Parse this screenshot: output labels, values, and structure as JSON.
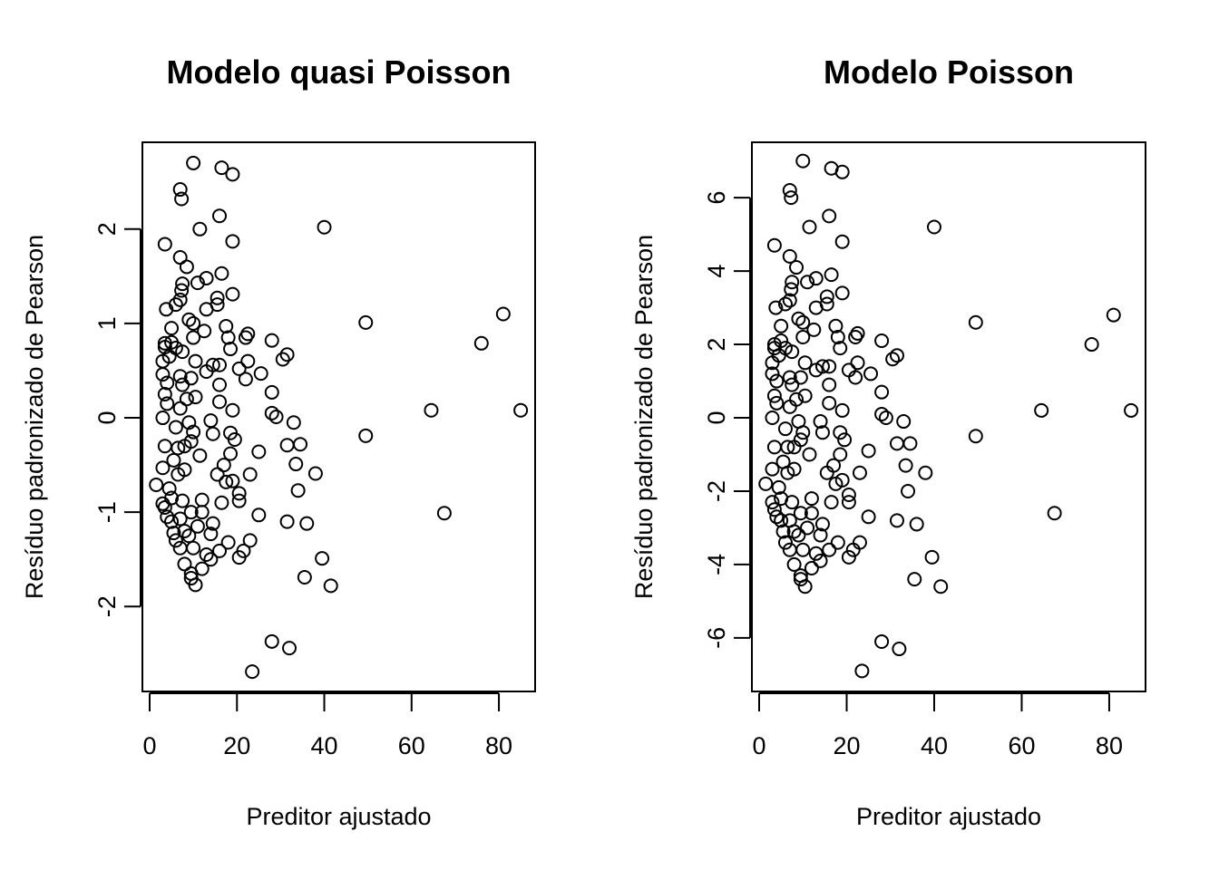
{
  "chart_data": [
    {
      "type": "scatter",
      "title": "Modelo quasi Poisson",
      "xlabel": "Preditor ajustado",
      "ylabel": "Resíduo padronizado de Pearson",
      "xlim": [
        -1.66,
        88.3
      ],
      "ylim": [
        -2.9,
        2.92
      ],
      "xticks": [
        0,
        20,
        40,
        60,
        80
      ],
      "yticks": [
        -2,
        -1,
        0,
        1,
        2
      ],
      "x": [
        10,
        16.5,
        19,
        7,
        7.3,
        16,
        11.5,
        40,
        19,
        3.5,
        7,
        8.5,
        16.5,
        13,
        11,
        7.5,
        7.3,
        19,
        7,
        15.5,
        13,
        3.8,
        15.5,
        6,
        81,
        49.5,
        9,
        5,
        10,
        17.5,
        12.5,
        22.5,
        10,
        18,
        22,
        28,
        76,
        3.5,
        5,
        6,
        7.5,
        18.5,
        3.5,
        4.5,
        31.5,
        30.5,
        3,
        10.5,
        22.5,
        16,
        14.5,
        20.5,
        13,
        25.5,
        3,
        7,
        9.5,
        22,
        4,
        7.5,
        16,
        28,
        3.5,
        10.5,
        8.5,
        4,
        16,
        7,
        19,
        64.5,
        85,
        28,
        29,
        3,
        14,
        9,
        33,
        6,
        10,
        18.5,
        14.5,
        49.5,
        19.5,
        9.5,
        34.5,
        31.5,
        8,
        3.5,
        6.5,
        25,
        18.5,
        11.5,
        5.5,
        33.5,
        17,
        3,
        8,
        15.5,
        23,
        38,
        6.5,
        19,
        17.5,
        1.5,
        4.5,
        34,
        20.5,
        5,
        7.5,
        20.5,
        12,
        16.5,
        3,
        3.5,
        9.5,
        12,
        25,
        67.5,
        4,
        7,
        5,
        31.5,
        36,
        14.5,
        11,
        8,
        5.5,
        9,
        14,
        6,
        18,
        23,
        10,
        7,
        21.5,
        16,
        13,
        20.5,
        14,
        39.5,
        8,
        12,
        9.5,
        35.5,
        9.5,
        10.5,
        41.5,
        28,
        32,
        23.5
      ],
      "y": [
        2.7,
        2.65,
        2.58,
        2.42,
        2.32,
        2.14,
        2.0,
        2.02,
        1.87,
        1.84,
        1.7,
        1.6,
        1.53,
        1.48,
        1.43,
        1.42,
        1.35,
        1.31,
        1.25,
        1.27,
        1.15,
        1.15,
        1.2,
        1.2,
        1.1,
        1.01,
        1.04,
        0.95,
        1.0,
        0.97,
        0.92,
        0.89,
        0.85,
        0.85,
        0.85,
        0.82,
        0.79,
        0.79,
        0.8,
        0.74,
        0.7,
        0.73,
        0.75,
        0.65,
        0.67,
        0.62,
        0.6,
        0.6,
        0.6,
        0.56,
        0.56,
        0.52,
        0.49,
        0.47,
        0.46,
        0.44,
        0.42,
        0.41,
        0.37,
        0.35,
        0.35,
        0.27,
        0.25,
        0.22,
        0.2,
        0.15,
        0.17,
        0.1,
        0.08,
        0.08,
        0.08,
        0.05,
        0.01,
        0.0,
        -0.03,
        -0.05,
        -0.05,
        -0.1,
        -0.15,
        -0.16,
        -0.17,
        -0.19,
        -0.23,
        -0.25,
        -0.28,
        -0.29,
        -0.3,
        -0.3,
        -0.32,
        -0.36,
        -0.38,
        -0.4,
        -0.45,
        -0.49,
        -0.5,
        -0.53,
        -0.55,
        -0.6,
        -0.6,
        -0.59,
        -0.6,
        -0.67,
        -0.68,
        -0.71,
        -0.75,
        -0.77,
        -0.8,
        -0.85,
        -0.88,
        -0.88,
        -0.87,
        -0.9,
        -0.91,
        -0.95,
        -1.0,
        -1.0,
        -1.03,
        -1.01,
        -1.05,
        -1.07,
        -1.1,
        -1.1,
        -1.12,
        -1.12,
        -1.15,
        -1.2,
        -1.22,
        -1.25,
        -1.23,
        -1.3,
        -1.32,
        -1.3,
        -1.38,
        -1.38,
        -1.41,
        -1.41,
        -1.45,
        -1.48,
        -1.5,
        -1.49,
        -1.55,
        -1.6,
        -1.65,
        -1.69,
        -1.7,
        -1.77,
        -1.78,
        -2.37,
        -2.44,
        -2.69
      ]
    },
    {
      "type": "scatter",
      "title": "Modelo Poisson",
      "xlabel": "Preditor ajustado",
      "ylabel": "Resíduo padronizado de Pearson",
      "xlim": [
        -1.66,
        88.3
      ],
      "ylim": [
        -7.46,
        7.51
      ],
      "xticks": [
        0,
        20,
        40,
        60,
        80
      ],
      "yticks": [
        -6,
        -4,
        -2,
        0,
        2,
        4,
        6
      ],
      "x": [
        10,
        16.5,
        19,
        7,
        7.3,
        16,
        11.5,
        40,
        19,
        3.5,
        7,
        8.5,
        16.5,
        13,
        11,
        7.5,
        7.3,
        19,
        7,
        15.5,
        13,
        3.8,
        15.5,
        6,
        81,
        49.5,
        9,
        5,
        10,
        17.5,
        12.5,
        22.5,
        10,
        18,
        22,
        28,
        76,
        3.5,
        5,
        6,
        7.5,
        18.5,
        3.5,
        4.5,
        31.5,
        30.5,
        3,
        10.5,
        22.5,
        16,
        14.5,
        20.5,
        13,
        25.5,
        3,
        7,
        9.5,
        22,
        4,
        7.5,
        16,
        28,
        3.5,
        10.5,
        8.5,
        4,
        16,
        7,
        19,
        64.5,
        85,
        28,
        29,
        3,
        14,
        9,
        33,
        6,
        10,
        18.5,
        14.5,
        49.5,
        19.5,
        9.5,
        34.5,
        31.5,
        8,
        3.5,
        6.5,
        25,
        18.5,
        11.5,
        5.5,
        33.5,
        17,
        3,
        8,
        15.5,
        23,
        38,
        6.5,
        19,
        17.5,
        1.5,
        4.5,
        34,
        20.5,
        5,
        7.5,
        20.5,
        12,
        16.5,
        3,
        3.5,
        9.5,
        12,
        25,
        67.5,
        4,
        7,
        5,
        31.5,
        36,
        14.5,
        11,
        8,
        5.5,
        9,
        14,
        6,
        18,
        23,
        10,
        7,
        21.5,
        16,
        13,
        20.5,
        14,
        39.5,
        8,
        12,
        9.5,
        35.5,
        9.5,
        10.5,
        41.5,
        28,
        32,
        23.5
      ],
      "y": [
        7.0,
        6.8,
        6.7,
        6.2,
        6.0,
        5.5,
        5.2,
        5.2,
        4.8,
        4.7,
        4.4,
        4.1,
        3.9,
        3.8,
        3.7,
        3.7,
        3.5,
        3.4,
        3.2,
        3.3,
        3.0,
        3.0,
        3.1,
        3.1,
        2.8,
        2.6,
        2.7,
        2.5,
        2.6,
        2.5,
        2.4,
        2.3,
        2.2,
        2.2,
        2.2,
        2.1,
        2.0,
        2.0,
        2.1,
        1.9,
        1.8,
        1.9,
        1.9,
        1.7,
        1.7,
        1.6,
        1.5,
        1.5,
        1.5,
        1.4,
        1.4,
        1.3,
        1.3,
        1.2,
        1.2,
        1.1,
        1.1,
        1.1,
        1.0,
        0.9,
        0.9,
        0.7,
        0.6,
        0.6,
        0.5,
        0.4,
        0.4,
        0.3,
        0.2,
        0.2,
        0.2,
        0.1,
        0.0,
        0.0,
        -0.1,
        -0.1,
        -0.1,
        -0.3,
        -0.4,
        -0.4,
        -0.4,
        -0.5,
        -0.6,
        -0.6,
        -0.7,
        -0.7,
        -0.8,
        -0.8,
        -0.8,
        -0.9,
        -1.0,
        -1.0,
        -1.2,
        -1.3,
        -1.3,
        -1.4,
        -1.4,
        -1.5,
        -1.5,
        -1.5,
        -1.5,
        -1.7,
        -1.8,
        -1.8,
        -1.9,
        -2.0,
        -2.1,
        -2.2,
        -2.3,
        -2.3,
        -2.2,
        -2.3,
        -2.3,
        -2.5,
        -2.6,
        -2.6,
        -2.7,
        -2.6,
        -2.7,
        -2.8,
        -2.8,
        -2.8,
        -2.9,
        -2.9,
        -3.0,
        -3.1,
        -3.1,
        -3.2,
        -3.2,
        -3.4,
        -3.4,
        -3.4,
        -3.6,
        -3.6,
        -3.6,
        -3.6,
        -3.7,
        -3.8,
        -3.9,
        -3.8,
        -4.0,
        -4.1,
        -4.3,
        -4.4,
        -4.4,
        -4.6,
        -4.6,
        -6.1,
        -6.3,
        -6.9
      ]
    }
  ]
}
